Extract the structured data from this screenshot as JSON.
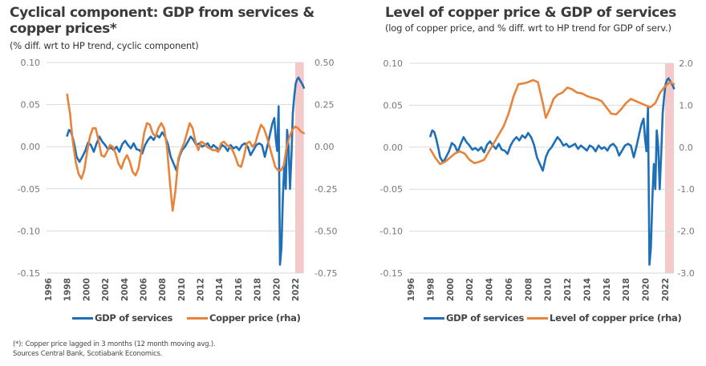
{
  "colors": {
    "gdp": "#1f6fb8",
    "copper": "#e8833a",
    "shade": "#f3c9c9",
    "grid": "#d9d9d9"
  },
  "notes": {
    "line1": "(*): Copper price lagged in 3 months (12 month moving avg.).",
    "line2": "Sources Central Bank, Scotiabank Economics."
  },
  "chart_data": [
    {
      "type": "line",
      "title": "Cyclical component: GDP from services & copper prices*",
      "subtitle": "(% diff. wrt to HP trend, cyclic component)",
      "xlabel": "",
      "ylabel": "",
      "y2label": "",
      "x_ticks": [
        "1996",
        "1998",
        "2000",
        "2002",
        "2004",
        "2006",
        "2008",
        "2010",
        "2012",
        "2014",
        "2016",
        "2018",
        "2020",
        "2022"
      ],
      "xlim": [
        1996,
        2022.9
      ],
      "ylim": [
        -0.15,
        0.1
      ],
      "y_ticks": [
        "0.10",
        "0.05",
        "0.00",
        "-0.05",
        "-0.10",
        "-0.15"
      ],
      "y2lim": [
        -0.75,
        0.5
      ],
      "y2_ticks": [
        "0.50",
        "0.25",
        "0.00",
        "-0.25",
        "-0.50",
        "-0.75"
      ],
      "grid": true,
      "legend": "bottom",
      "shaded_region": {
        "x0": 2022.0,
        "x1": 2022.9
      },
      "series": [
        {
          "name": "GDP of services",
          "axis": "left",
          "color": "#1f6fb8",
          "x": [
            1998.0,
            1998.2,
            1998.4,
            1998.6,
            1998.8,
            1999.0,
            1999.3,
            1999.6,
            1999.9,
            2000.2,
            2000.5,
            2000.8,
            2001.1,
            2001.4,
            2001.7,
            2002.0,
            2002.3,
            2002.6,
            2002.9,
            2003.2,
            2003.5,
            2003.8,
            2004.1,
            2004.4,
            2004.7,
            2005.0,
            2005.3,
            2005.6,
            2005.9,
            2006.2,
            2006.5,
            2006.8,
            2007.1,
            2007.4,
            2007.7,
            2008.0,
            2008.3,
            2008.6,
            2008.9,
            2009.2,
            2009.5,
            2009.8,
            2010.1,
            2010.4,
            2010.7,
            2011.0,
            2011.3,
            2011.6,
            2011.9,
            2012.2,
            2012.5,
            2012.8,
            2013.1,
            2013.4,
            2013.7,
            2014.0,
            2014.3,
            2014.6,
            2014.9,
            2015.2,
            2015.5,
            2015.8,
            2016.1,
            2016.4,
            2016.7,
            2017.0,
            2017.3,
            2017.6,
            2017.9,
            2018.2,
            2018.5,
            2018.8,
            2019.1,
            2019.4,
            2019.6,
            2019.8,
            2019.95,
            2020.1,
            2020.25,
            2020.4,
            2020.55,
            2020.7,
            2020.85,
            2021.0,
            2021.15,
            2021.3,
            2021.45,
            2021.6,
            2021.75,
            2021.9,
            2022.05,
            2022.2,
            2022.35,
            2022.5,
            2022.65,
            2022.8,
            2022.9
          ],
          "values": [
            0.013,
            0.02,
            0.018,
            0.01,
            0.0,
            -0.012,
            -0.018,
            -0.012,
            -0.005,
            0.005,
            0.002,
            -0.006,
            0.004,
            0.012,
            0.006,
            0.002,
            -0.003,
            -0.001,
            -0.004,
            0.0,
            -0.006,
            0.003,
            0.007,
            0.002,
            -0.002,
            0.004,
            -0.003,
            -0.004,
            -0.008,
            0.002,
            0.008,
            0.012,
            0.008,
            0.014,
            0.011,
            0.017,
            0.012,
            0.003,
            -0.012,
            -0.02,
            -0.028,
            -0.012,
            -0.004,
            0.0,
            0.006,
            0.012,
            0.008,
            0.002,
            0.004,
            0.0,
            0.002,
            0.004,
            -0.002,
            0.002,
            -0.001,
            -0.004,
            0.002,
            0.0,
            -0.005,
            0.002,
            -0.002,
            0.0,
            -0.004,
            0.002,
            0.004,
            0.0,
            -0.01,
            -0.004,
            0.002,
            0.004,
            0.002,
            -0.012,
            0.002,
            0.018,
            0.028,
            0.034,
            0.01,
            -0.005,
            0.048,
            -0.14,
            -0.12,
            -0.06,
            -0.02,
            -0.05,
            0.02,
            0.0,
            -0.05,
            -0.01,
            0.04,
            0.06,
            0.075,
            0.08,
            0.082,
            0.079,
            0.076,
            0.073,
            0.07
          ]
        },
        {
          "name": "Copper price (rha)",
          "axis": "right",
          "color": "#e8833a",
          "x": [
            1998.0,
            1998.3,
            1998.6,
            1998.9,
            1999.2,
            1999.5,
            1999.8,
            2000.1,
            2000.4,
            2000.7,
            2001.0,
            2001.3,
            2001.6,
            2001.9,
            2002.2,
            2002.5,
            2002.8,
            2003.1,
            2003.4,
            2003.7,
            2004.0,
            2004.3,
            2004.6,
            2004.9,
            2005.2,
            2005.5,
            2005.8,
            2006.1,
            2006.4,
            2006.7,
            2007.0,
            2007.3,
            2007.6,
            2007.9,
            2008.2,
            2008.5,
            2008.8,
            2009.1,
            2009.4,
            2009.7,
            2010.0,
            2010.3,
            2010.6,
            2010.9,
            2011.2,
            2011.5,
            2011.8,
            2012.1,
            2012.4,
            2012.7,
            2013.0,
            2013.3,
            2013.6,
            2013.9,
            2014.2,
            2014.5,
            2014.8,
            2015.1,
            2015.4,
            2015.7,
            2016.0,
            2016.3,
            2016.6,
            2016.9,
            2017.2,
            2017.5,
            2017.8,
            2018.1,
            2018.4,
            2018.7,
            2019.0,
            2019.3,
            2019.6,
            2019.9,
            2020.2,
            2020.5,
            2020.8,
            2021.1,
            2021.4,
            2021.7,
            2022.0,
            2022.3,
            2022.6,
            2022.9
          ],
          "values": [
            0.31,
            0.2,
            0.03,
            -0.09,
            -0.16,
            -0.19,
            -0.14,
            -0.03,
            0.06,
            0.11,
            0.11,
            0.04,
            -0.05,
            -0.06,
            -0.03,
            0.01,
            0.0,
            -0.04,
            -0.1,
            -0.13,
            -0.08,
            -0.05,
            -0.09,
            -0.15,
            -0.17,
            -0.13,
            -0.03,
            0.08,
            0.14,
            0.13,
            0.08,
            0.06,
            0.11,
            0.14,
            0.11,
            0.0,
            -0.2,
            -0.38,
            -0.26,
            -0.07,
            -0.02,
            0.02,
            0.08,
            0.14,
            0.11,
            0.03,
            -0.02,
            0.03,
            0.02,
            0.0,
            -0.01,
            -0.02,
            -0.02,
            -0.03,
            0.02,
            0.03,
            0.01,
            0.0,
            -0.02,
            -0.06,
            -0.11,
            -0.12,
            -0.06,
            0.02,
            0.03,
            0.0,
            0.02,
            0.08,
            0.13,
            0.11,
            0.06,
            0.0,
            -0.06,
            -0.12,
            -0.14,
            -0.14,
            -0.11,
            0.0,
            0.06,
            0.1,
            0.12,
            0.11,
            0.09,
            0.08
          ]
        }
      ]
    },
    {
      "type": "line",
      "title": "Level of copper price & GDP of services",
      "subtitle": "(log of copper price, and % diff. wrt to HP trend for GDP of serv.)",
      "xlabel": "",
      "ylabel": "",
      "y2label": "",
      "x_ticks": [
        "1996",
        "1998",
        "2000",
        "2002",
        "2004",
        "2006",
        "2008",
        "2010",
        "2012",
        "2014",
        "2016",
        "2018",
        "2020",
        "2022"
      ],
      "xlim": [
        1996,
        2022.9
      ],
      "ylim": [
        -0.15,
        0.1
      ],
      "y_ticks": [
        "0.10",
        "0.05",
        "0.00",
        "-0.05",
        "-0.10",
        "-0.15"
      ],
      "y2lim": [
        -3.0,
        2.0
      ],
      "y2_ticks": [
        "2.0",
        "1.0",
        "0.0",
        "-1.0",
        "-2.0",
        "-3.0"
      ],
      "grid": true,
      "legend": "bottom",
      "shaded_region": {
        "x0": 2022.0,
        "x1": 2022.9
      },
      "series": [
        {
          "name": "GDP of services",
          "axis": "left",
          "color": "#1f6fb8",
          "x": [
            1998.0,
            1998.2,
            1998.4,
            1998.6,
            1998.8,
            1999.0,
            1999.3,
            1999.6,
            1999.9,
            2000.2,
            2000.5,
            2000.8,
            2001.1,
            2001.4,
            2001.7,
            2002.0,
            2002.3,
            2002.6,
            2002.9,
            2003.2,
            2003.5,
            2003.8,
            2004.1,
            2004.4,
            2004.7,
            2005.0,
            2005.3,
            2005.6,
            2005.9,
            2006.2,
            2006.5,
            2006.8,
            2007.1,
            2007.4,
            2007.7,
            2008.0,
            2008.3,
            2008.6,
            2008.9,
            2009.2,
            2009.5,
            2009.8,
            2010.1,
            2010.4,
            2010.7,
            2011.0,
            2011.3,
            2011.6,
            2011.9,
            2012.2,
            2012.5,
            2012.8,
            2013.1,
            2013.4,
            2013.7,
            2014.0,
            2014.3,
            2014.6,
            2014.9,
            2015.2,
            2015.5,
            2015.8,
            2016.1,
            2016.4,
            2016.7,
            2017.0,
            2017.3,
            2017.6,
            2017.9,
            2018.2,
            2018.5,
            2018.8,
            2019.1,
            2019.4,
            2019.6,
            2019.8,
            2019.95,
            2020.1,
            2020.25,
            2020.4,
            2020.55,
            2020.7,
            2020.85,
            2021.0,
            2021.15,
            2021.3,
            2021.45,
            2021.6,
            2021.75,
            2021.9,
            2022.05,
            2022.2,
            2022.35,
            2022.5,
            2022.65,
            2022.8,
            2022.9
          ],
          "values": [
            0.013,
            0.02,
            0.018,
            0.01,
            0.0,
            -0.012,
            -0.018,
            -0.012,
            -0.005,
            0.005,
            0.002,
            -0.006,
            0.004,
            0.012,
            0.006,
            0.002,
            -0.003,
            -0.001,
            -0.004,
            0.0,
            -0.006,
            0.003,
            0.007,
            0.002,
            -0.002,
            0.004,
            -0.003,
            -0.004,
            -0.008,
            0.002,
            0.008,
            0.012,
            0.008,
            0.014,
            0.011,
            0.017,
            0.012,
            0.003,
            -0.012,
            -0.02,
            -0.028,
            -0.012,
            -0.004,
            0.0,
            0.006,
            0.012,
            0.008,
            0.002,
            0.004,
            0.0,
            0.002,
            0.004,
            -0.002,
            0.002,
            -0.001,
            -0.004,
            0.002,
            0.0,
            -0.005,
            0.002,
            -0.002,
            0.0,
            -0.004,
            0.002,
            0.004,
            0.0,
            -0.01,
            -0.004,
            0.002,
            0.004,
            0.002,
            -0.012,
            0.002,
            0.018,
            0.028,
            0.034,
            0.01,
            -0.005,
            0.048,
            -0.14,
            -0.12,
            -0.06,
            -0.02,
            -0.05,
            0.02,
            0.0,
            -0.05,
            -0.01,
            0.04,
            0.06,
            0.075,
            0.08,
            0.082,
            0.079,
            0.076,
            0.073,
            0.07
          ]
        },
        {
          "name": "Level of copper price (rha)",
          "axis": "right",
          "color": "#e8833a",
          "x": [
            1998.0,
            1998.5,
            1999.0,
            1999.5,
            2000.0,
            2000.5,
            2001.0,
            2001.5,
            2002.0,
            2002.5,
            2003.0,
            2003.5,
            2004.0,
            2004.5,
            2005.0,
            2005.5,
            2006.0,
            2006.5,
            2007.0,
            2007.5,
            2008.0,
            2008.5,
            2009.0,
            2009.5,
            2009.8,
            2010.2,
            2010.6,
            2011.0,
            2011.5,
            2012.0,
            2012.5,
            2013.0,
            2013.5,
            2014.0,
            2014.5,
            2015.0,
            2015.5,
            2016.0,
            2016.5,
            2017.0,
            2017.5,
            2018.0,
            2018.5,
            2019.0,
            2019.5,
            2020.0,
            2020.5,
            2021.0,
            2021.5,
            2022.0,
            2022.5,
            2022.9
          ],
          "values": [
            -0.05,
            -0.25,
            -0.4,
            -0.35,
            -0.25,
            -0.15,
            -0.1,
            -0.15,
            -0.3,
            -0.38,
            -0.35,
            -0.3,
            -0.1,
            0.1,
            0.3,
            0.5,
            0.8,
            1.2,
            1.5,
            1.52,
            1.55,
            1.6,
            1.55,
            1.05,
            0.7,
            0.9,
            1.15,
            1.25,
            1.3,
            1.42,
            1.38,
            1.3,
            1.28,
            1.22,
            1.18,
            1.15,
            1.1,
            0.95,
            0.8,
            0.78,
            0.9,
            1.05,
            1.15,
            1.1,
            1.05,
            1.0,
            0.95,
            1.05,
            1.3,
            1.45,
            1.55,
            1.5
          ]
        }
      ]
    }
  ]
}
